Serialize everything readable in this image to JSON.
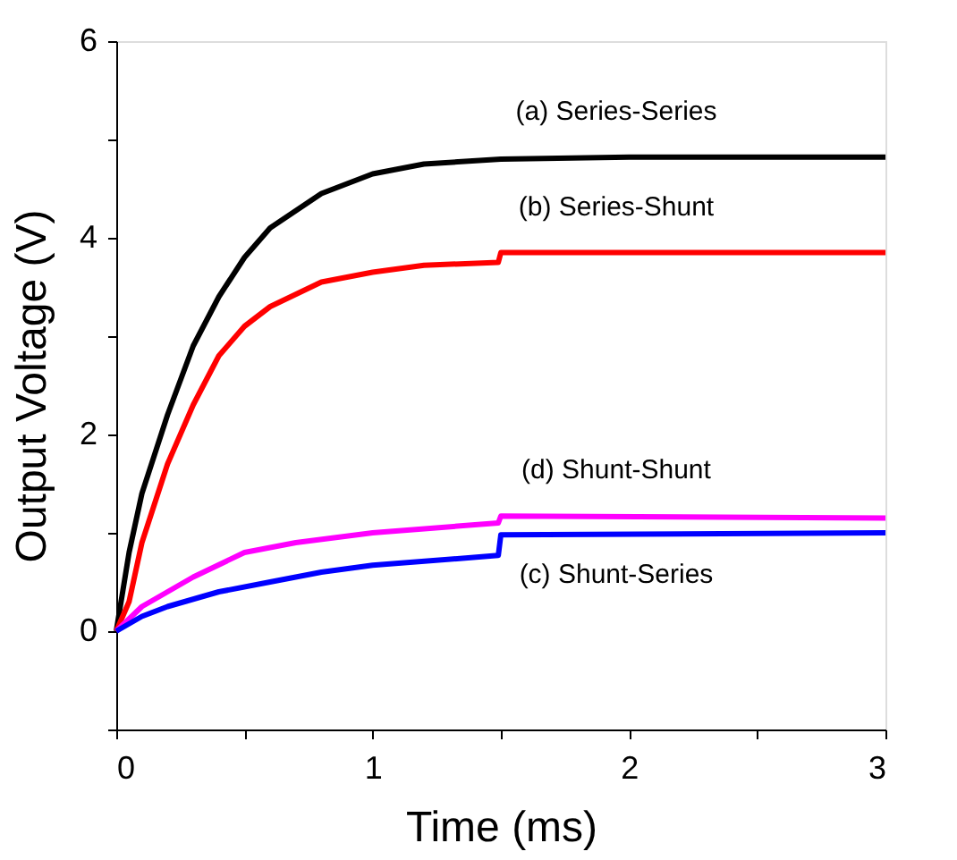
{
  "chart_data": {
    "type": "line",
    "xlabel": "Time (ms)",
    "ylabel": "Output Voltage (V)",
    "xlim": [
      0,
      3
    ],
    "xticks": [
      0,
      {
        "value": 0.5,
        "label": null
      },
      1,
      {
        "value": 1.5,
        "label": null
      },
      2,
      {
        "value": 2.5,
        "label": null
      },
      3
    ],
    "ylim": [
      -1,
      6
    ],
    "yticks": [
      {
        "value": -1,
        "label": null
      },
      0,
      {
        "value": 1,
        "label": null
      },
      2,
      {
        "value": 3,
        "label": null
      },
      4,
      {
        "value": 5,
        "label": null
      },
      6
    ],
    "grid": false,
    "legend": false,
    "marker": "none",
    "line_style": "solid",
    "series": [
      {
        "name": "(a) Series-Series",
        "color": "#000000",
        "x": [
          0,
          0.05,
          0.1,
          0.2,
          0.3,
          0.4,
          0.5,
          0.6,
          0.8,
          1.0,
          1.2,
          1.5,
          2.0,
          3.0
        ],
        "values": [
          0,
          0.8,
          1.4,
          2.2,
          2.9,
          3.4,
          3.8,
          4.1,
          4.45,
          4.65,
          4.75,
          4.8,
          4.82,
          4.82
        ]
      },
      {
        "name": "(b) Series-Shunt",
        "color": "#ff0000",
        "x": [
          0,
          0.05,
          0.1,
          0.2,
          0.3,
          0.4,
          0.5,
          0.6,
          0.8,
          1.0,
          1.2,
          1.49,
          1.5,
          2.0,
          3.0
        ],
        "values": [
          0,
          0.3,
          0.9,
          1.7,
          2.3,
          2.8,
          3.1,
          3.3,
          3.55,
          3.65,
          3.72,
          3.75,
          3.85,
          3.85,
          3.85
        ]
      },
      {
        "name": "(d) Shunt-Shunt",
        "color": "#ff00ff",
        "x": [
          0,
          0.1,
          0.2,
          0.3,
          0.5,
          0.7,
          1.0,
          1.49,
          1.5,
          3.0
        ],
        "values": [
          0,
          0.25,
          0.4,
          0.55,
          0.8,
          0.9,
          1.0,
          1.1,
          1.17,
          1.15
        ]
      },
      {
        "name": "(c) Shunt-Series",
        "color": "#0000ff",
        "x": [
          0,
          0.1,
          0.2,
          0.4,
          0.6,
          0.8,
          1.0,
          1.49,
          1.5,
          3.0
        ],
        "values": [
          0,
          0.15,
          0.25,
          0.4,
          0.5,
          0.6,
          0.67,
          0.77,
          0.98,
          1.0
        ]
      }
    ]
  }
}
